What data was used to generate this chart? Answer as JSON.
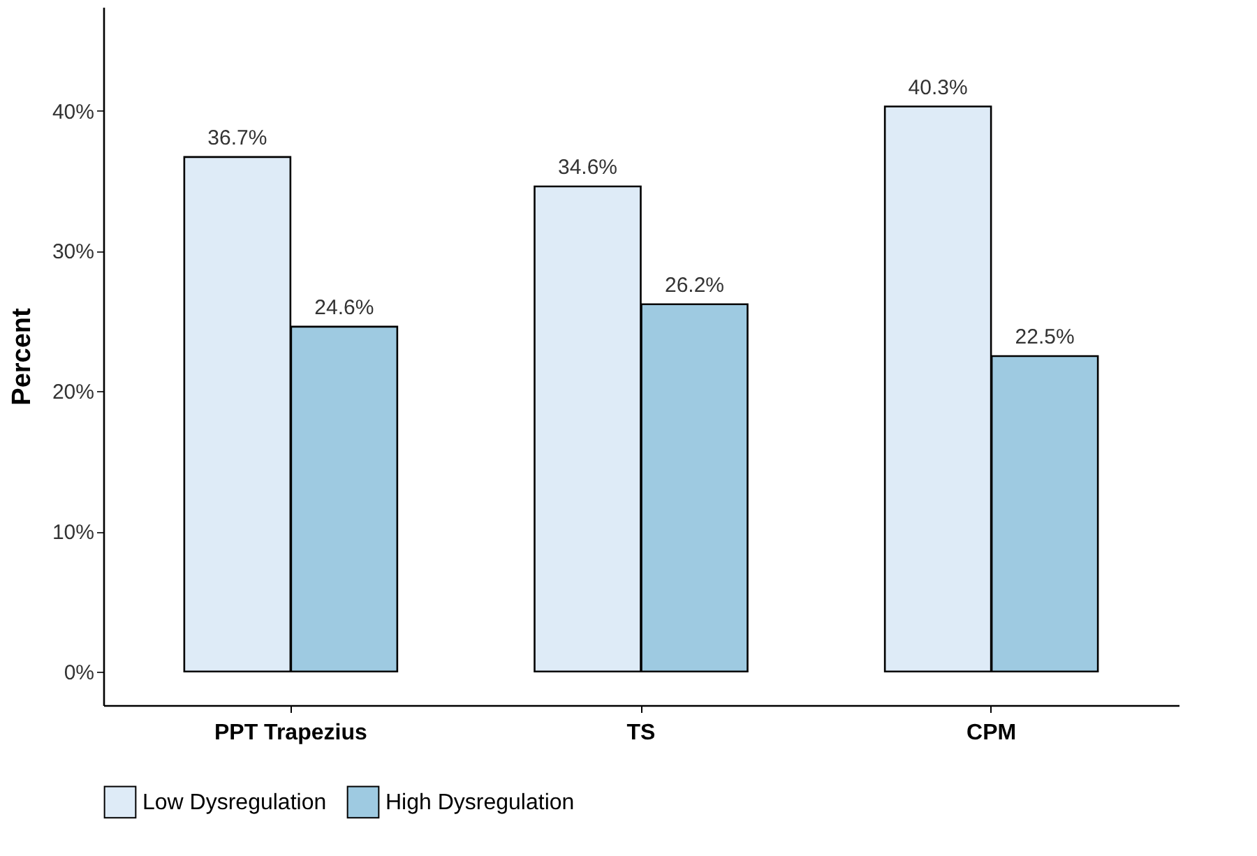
{
  "chart_data": {
    "type": "bar",
    "ylabel": "Percent",
    "categories": [
      "PPT Trapezius",
      "TS",
      "CPM"
    ],
    "series": [
      {
        "name": "Low Dysregulation",
        "color": "#deebf7",
        "values": [
          36.7,
          34.6,
          40.3
        ],
        "value_labels": [
          "36.7%",
          "34.6%",
          "40.3%"
        ]
      },
      {
        "name": "High Dysregulation",
        "color": "#9ecae1",
        "values": [
          24.6,
          26.2,
          22.5
        ],
        "value_labels": [
          "24.6%",
          "26.2%",
          "22.5%"
        ]
      }
    ],
    "ylim": [
      -2.4,
      47.4
    ],
    "yticks": [
      {
        "value": 0,
        "label": "0%"
      },
      {
        "value": 10,
        "label": "10%"
      },
      {
        "value": 20,
        "label": "20%"
      },
      {
        "value": 30,
        "label": "30%"
      },
      {
        "value": 40,
        "label": "40%"
      }
    ],
    "legend": "bottom",
    "grid": false
  }
}
